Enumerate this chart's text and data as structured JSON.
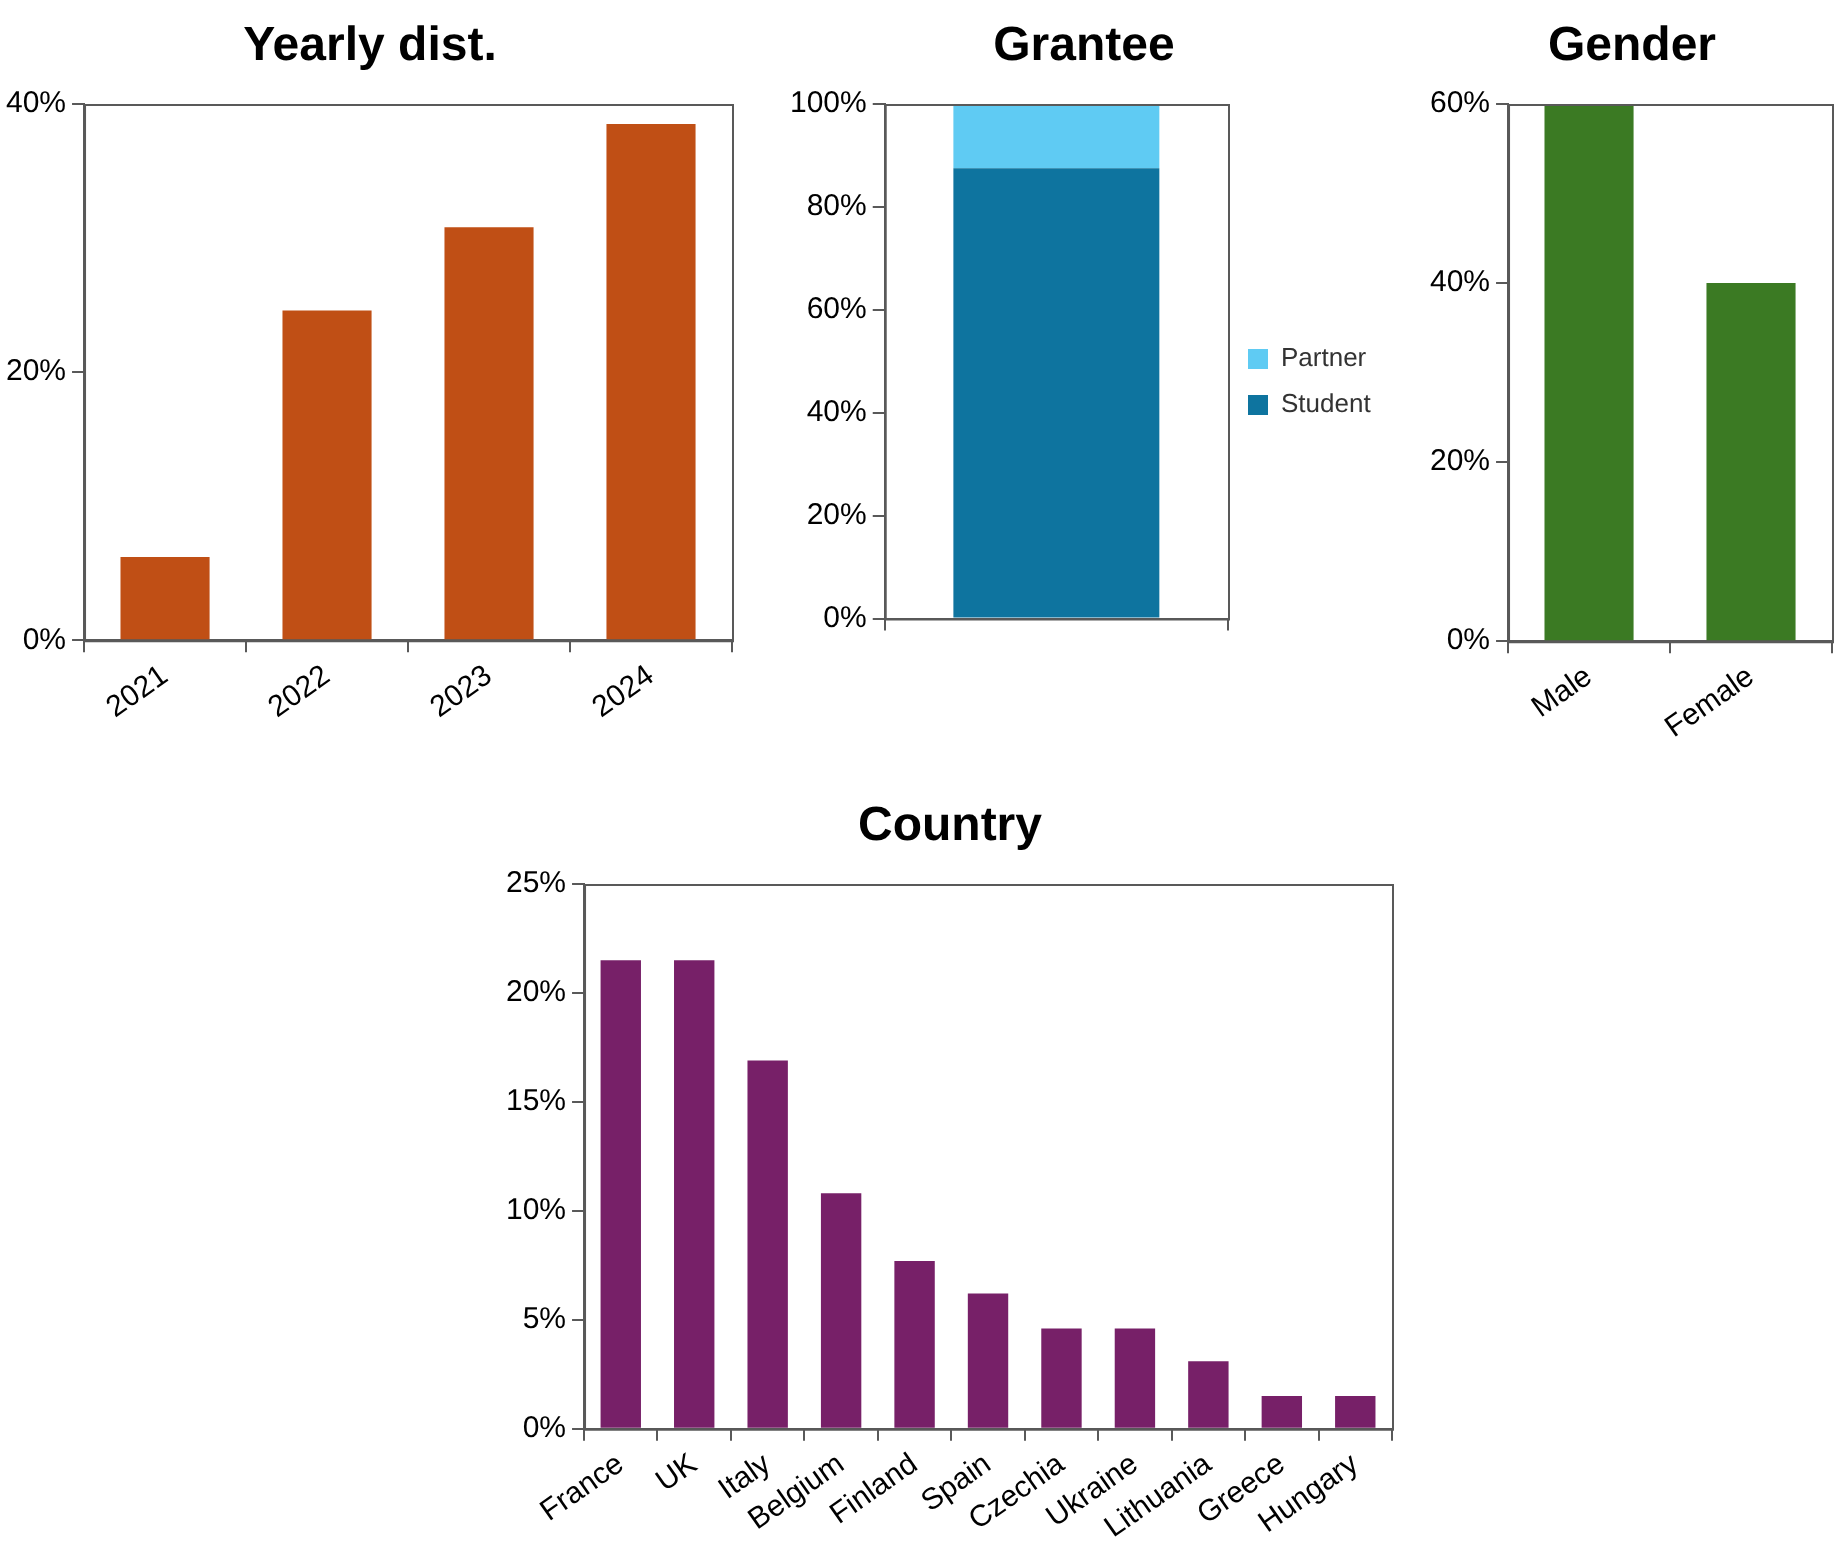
{
  "chart_data": [
    {
      "type": "bar",
      "title": "Yearly dist.",
      "categories": [
        "2021",
        "2022",
        "2023",
        "2024"
      ],
      "values": [
        6.2,
        24.6,
        30.8,
        38.5
      ],
      "color": "#c04f15",
      "ylim": [
        0,
        40
      ],
      "yticks": [
        {
          "value": 0,
          "label": "0%"
        },
        {
          "value": 20,
          "label": "20%"
        },
        {
          "value": 40,
          "label": "40%"
        }
      ],
      "grid": false,
      "legend": false
    },
    {
      "type": "bar",
      "title": "Grantee",
      "categories": [
        null
      ],
      "stacked": true,
      "series": [
        {
          "name": "Student",
          "color": "#0e749f",
          "values": [
            87.5
          ]
        },
        {
          "name": "Partner",
          "color": "#5fcbf3",
          "values": [
            12.5
          ]
        }
      ],
      "ylim": [
        0,
        100
      ],
      "yticks": [
        {
          "value": 0,
          "label": "0%"
        },
        {
          "value": 20,
          "label": "20%"
        },
        {
          "value": 40,
          "label": "40%"
        },
        {
          "value": 60,
          "label": "60%"
        },
        {
          "value": 80,
          "label": "80%"
        },
        {
          "value": 100,
          "label": "100%"
        }
      ],
      "grid": false,
      "legend": "right"
    },
    {
      "type": "bar",
      "title": "Gender",
      "categories": [
        "Male",
        "Female"
      ],
      "values": [
        60,
        40
      ],
      "color": "#3b7a23",
      "ylim": [
        0,
        60
      ],
      "yticks": [
        {
          "value": 0,
          "label": "0%"
        },
        {
          "value": 20,
          "label": "20%"
        },
        {
          "value": 40,
          "label": "40%"
        },
        {
          "value": 60,
          "label": "60%"
        }
      ],
      "grid": false,
      "legend": false
    },
    {
      "type": "bar",
      "title": "Country",
      "categories": [
        "France",
        "UK",
        "Italy",
        "Belgium",
        "Finland",
        "Spain",
        "Czechia",
        "Ukraine",
        "Lithuania",
        "Greece",
        "Hungary"
      ],
      "values": [
        21.5,
        21.5,
        16.9,
        10.8,
        7.7,
        6.2,
        4.6,
        4.6,
        3.1,
        1.5,
        1.5
      ],
      "color": "#772068",
      "ylim": [
        0,
        25
      ],
      "yticks": [
        {
          "value": 0,
          "label": "0%"
        },
        {
          "value": 5,
          "label": "5%"
        },
        {
          "value": 10,
          "label": "10%"
        },
        {
          "value": 15,
          "label": "15%"
        },
        {
          "value": 20,
          "label": "20%"
        },
        {
          "value": 25,
          "label": "25%"
        }
      ],
      "grid": false,
      "legend": false
    }
  ]
}
